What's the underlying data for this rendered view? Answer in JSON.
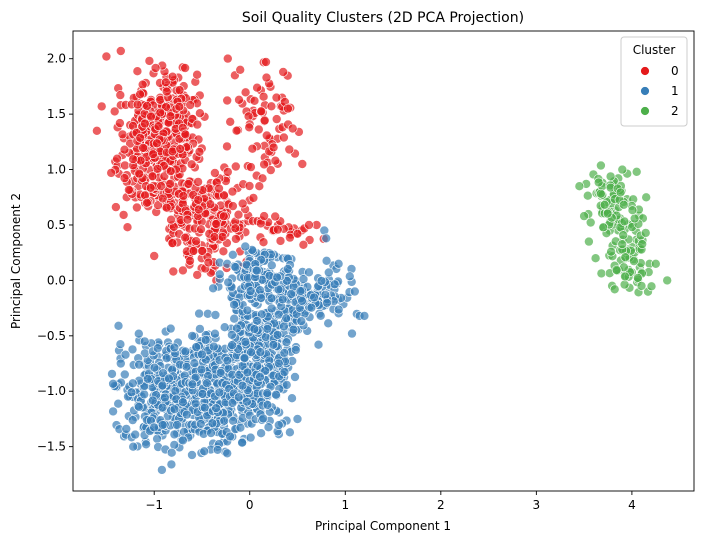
{
  "chart_data": {
    "type": "scatter",
    "title": "Soil Quality Clusters (2D PCA Projection)",
    "xlabel": "Principal Component 1",
    "ylabel": "Principal Component 2",
    "xlim": [
      -1.85,
      4.65
    ],
    "ylim": [
      -1.9,
      2.25
    ],
    "x_ticks": [
      -1,
      0,
      1,
      2,
      3,
      4
    ],
    "y_ticks": [
      -1.5,
      -1.0,
      -0.5,
      0.0,
      0.5,
      1.0,
      1.5,
      2.0
    ],
    "x_tick_labels": [
      "−1",
      "0",
      "1",
      "2",
      "3",
      "4"
    ],
    "y_tick_labels": [
      "−1.5",
      "−1.0",
      "−0.5",
      "0.0",
      "0.5",
      "1.0",
      "1.5",
      "2.0"
    ],
    "grid": false,
    "legend": {
      "title": "Cluster",
      "position": "top-right",
      "entries": [
        "0",
        "1",
        "2"
      ]
    },
    "series": [
      {
        "name": "0",
        "color": "#e41a1c",
        "regions": [
          {
            "cx": -0.95,
            "cy": 1.25,
            "sx": 0.22,
            "sy": 0.33,
            "n": 430
          },
          {
            "cx": -0.45,
            "cy": 0.55,
            "sx": 0.23,
            "sy": 0.22,
            "n": 220
          },
          {
            "cx": 0.15,
            "cy": 1.45,
            "sx": 0.18,
            "sy": 0.28,
            "n": 70
          },
          {
            "cx": 0.35,
            "cy": 0.45,
            "sx": 0.2,
            "sy": 0.07,
            "n": 28
          }
        ],
        "points": [
          {
            "x": -1.5,
            "y": 2.02
          },
          {
            "x": -1.35,
            "y": 2.07
          },
          {
            "x": -1.05,
            "y": 1.98
          },
          {
            "x": -1.55,
            "y": 1.57
          },
          {
            "x": -1.6,
            "y": 1.35
          },
          {
            "x": -1.45,
            "y": 0.97
          },
          {
            "x": -1.28,
            "y": 0.48
          },
          {
            "x": -0.8,
            "y": 0.08
          },
          {
            "x": -0.7,
            "y": 0.09
          },
          {
            "x": 0.17,
            "y": 1.97
          },
          {
            "x": -0.1,
            "y": 1.9
          },
          {
            "x": 0.35,
            "y": 1.88
          },
          {
            "x": 0.45,
            "y": 1.37
          },
          {
            "x": 0.55,
            "y": 1.05
          },
          {
            "x": 0.1,
            "y": 0.85
          },
          {
            "x": 0.7,
            "y": 0.5
          },
          {
            "x": 0.62,
            "y": 0.5
          },
          {
            "x": 0.5,
            "y": 0.42
          },
          {
            "x": 0.15,
            "y": 0.58
          },
          {
            "x": -0.15,
            "y": 0.47
          },
          {
            "x": 0.25,
            "y": 1.2
          },
          {
            "x": 0.05,
            "y": 1.62
          },
          {
            "x": 0.4,
            "y": 1.55
          },
          {
            "x": -0.35,
            "y": 0.0
          },
          {
            "x": -0.55,
            "y": 0.05
          },
          {
            "x": -1.0,
            "y": 0.22
          }
        ]
      },
      {
        "name": "1",
        "color": "#377eb8",
        "regions": [
          {
            "cx": -0.85,
            "cy": -1.0,
            "sx": 0.27,
            "sy": 0.27,
            "n": 340
          },
          {
            "cx": -0.3,
            "cy": -0.95,
            "sx": 0.23,
            "sy": 0.3,
            "n": 320
          },
          {
            "cx": 0.15,
            "cy": -0.55,
            "sx": 0.18,
            "sy": 0.4,
            "n": 380
          },
          {
            "cx": 0.7,
            "cy": -0.15,
            "sx": 0.22,
            "sy": 0.15,
            "n": 110
          },
          {
            "cx": 0.05,
            "cy": 0.05,
            "sx": 0.2,
            "sy": 0.13,
            "n": 80
          }
        ],
        "points": [
          {
            "x": -0.92,
            "y": -1.71
          },
          {
            "x": -0.82,
            "y": -1.66
          },
          {
            "x": -1.35,
            "y": -0.75
          },
          {
            "x": -1.3,
            "y": -0.67
          },
          {
            "x": 1.15,
            "y": -0.32
          },
          {
            "x": 1.2,
            "y": -0.32
          },
          {
            "x": 0.72,
            "y": -0.58
          },
          {
            "x": 0.78,
            "y": 0.45
          },
          {
            "x": 0.8,
            "y": 0.38
          },
          {
            "x": 1.07,
            "y": -0.48
          },
          {
            "x": -0.15,
            "y": 0.12
          },
          {
            "x": 0.42,
            "y": -1.37
          },
          {
            "x": 0.5,
            "y": -1.25
          },
          {
            "x": -1.22,
            "y": -1.5
          },
          {
            "x": -1.1,
            "y": -0.55
          },
          {
            "x": 0.93,
            "y": 0.15
          },
          {
            "x": 1.1,
            "y": -0.1
          }
        ]
      },
      {
        "name": "2",
        "color": "#4daf4a",
        "regions": [
          {
            "cx": 3.75,
            "cy": 0.75,
            "sx": 0.13,
            "sy": 0.15,
            "n": 55
          },
          {
            "cx": 3.95,
            "cy": 0.3,
            "sx": 0.13,
            "sy": 0.25,
            "n": 90
          }
        ],
        "points": [
          {
            "x": 4.37,
            "y": 0.0
          },
          {
            "x": 3.45,
            "y": 0.85
          },
          {
            "x": 3.5,
            "y": 0.58
          },
          {
            "x": 3.82,
            "y": -0.08
          },
          {
            "x": 4.05,
            "y": 0.98
          },
          {
            "x": 3.9,
            "y": 1.0
          },
          {
            "x": 4.15,
            "y": 0.75
          },
          {
            "x": 4.25,
            "y": 0.15
          },
          {
            "x": 3.55,
            "y": 0.35
          },
          {
            "x": 3.62,
            "y": 0.2
          },
          {
            "x": 4.1,
            "y": -0.05
          }
        ]
      }
    ]
  }
}
